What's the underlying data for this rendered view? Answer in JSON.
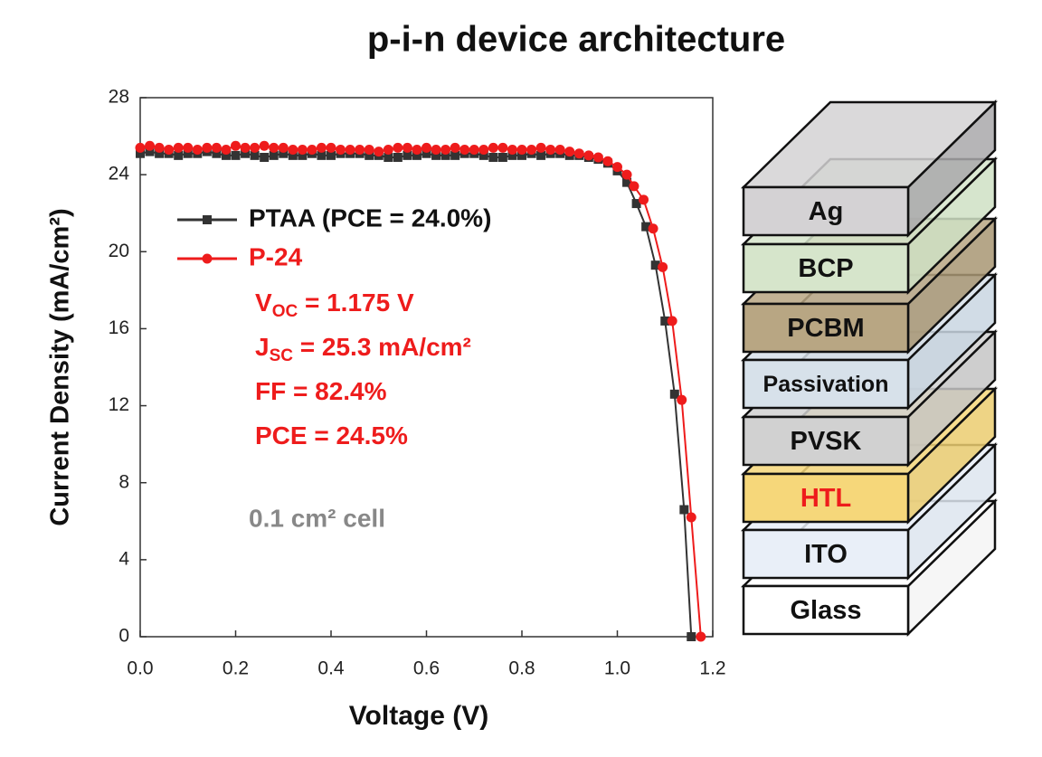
{
  "chart_data": {
    "type": "line",
    "title": "p-i-n device architecture",
    "xlabel": "Voltage (V)",
    "ylabel": "Current Density (mA/cm²)",
    "xlim": [
      0,
      1.2
    ],
    "ylim": [
      0,
      28
    ],
    "xticks": [
      {
        "value": 0,
        "label": "0.0"
      },
      0.2,
      0.4,
      0.6,
      0.8,
      {
        "value": 1,
        "label": "1.0"
      },
      1.2
    ],
    "yticks": [
      0,
      4,
      8,
      12,
      16,
      20,
      24,
      28
    ],
    "series": [
      {
        "name": "PTAA (PCE = 24.0%)",
        "color": "#333333",
        "marker": "square",
        "x": [
          0,
          0.02,
          0.04,
          0.06,
          0.08,
          0.1,
          0.12,
          0.14,
          0.16,
          0.18,
          0.2,
          0.22,
          0.24,
          0.26,
          0.28,
          0.3,
          0.32,
          0.34,
          0.36,
          0.38,
          0.4,
          0.42,
          0.44,
          0.46,
          0.48,
          0.5,
          0.52,
          0.54,
          0.56,
          0.58,
          0.6,
          0.62,
          0.64,
          0.66,
          0.68,
          0.7,
          0.72,
          0.74,
          0.76,
          0.78,
          0.8,
          0.82,
          0.84,
          0.86,
          0.88,
          0.9,
          0.92,
          0.94,
          0.96,
          0.98,
          1.0,
          1.02,
          1.04,
          1.06,
          1.08,
          1.1,
          1.12,
          1.14,
          1.155
        ],
        "values": [
          25.1,
          25.2,
          25.1,
          25.1,
          25.0,
          25.1,
          25.1,
          25.2,
          25.1,
          25.0,
          25.0,
          25.1,
          25.0,
          24.9,
          25.0,
          25.1,
          25.0,
          25.0,
          25.1,
          25.0,
          25.0,
          25.1,
          25.1,
          25.1,
          25.0,
          25.0,
          24.9,
          24.9,
          25.0,
          25.0,
          25.1,
          25.0,
          25.0,
          25.0,
          25.1,
          25.1,
          25.0,
          24.9,
          24.9,
          25.0,
          25.0,
          25.1,
          25.0,
          25.1,
          25.1,
          25.0,
          25.0,
          24.9,
          24.8,
          24.6,
          24.2,
          23.6,
          22.5,
          21.3,
          19.3,
          16.4,
          12.6,
          6.6,
          0
        ]
      },
      {
        "name": "P-24",
        "color": "#ee1c1c",
        "marker": "circle",
        "x": [
          0,
          0.02,
          0.04,
          0.06,
          0.08,
          0.1,
          0.12,
          0.14,
          0.16,
          0.18,
          0.2,
          0.22,
          0.24,
          0.26,
          0.28,
          0.3,
          0.32,
          0.34,
          0.36,
          0.38,
          0.4,
          0.42,
          0.44,
          0.46,
          0.48,
          0.5,
          0.52,
          0.54,
          0.56,
          0.58,
          0.6,
          0.62,
          0.64,
          0.66,
          0.68,
          0.7,
          0.72,
          0.74,
          0.76,
          0.78,
          0.8,
          0.82,
          0.84,
          0.86,
          0.88,
          0.9,
          0.92,
          0.94,
          0.96,
          0.98,
          1.0,
          1.02,
          1.035,
          1.055,
          1.075,
          1.095,
          1.115,
          1.135,
          1.155,
          1.175
        ],
        "values": [
          25.4,
          25.5,
          25.4,
          25.3,
          25.4,
          25.4,
          25.3,
          25.4,
          25.4,
          25.3,
          25.5,
          25.4,
          25.4,
          25.5,
          25.4,
          25.4,
          25.3,
          25.3,
          25.3,
          25.4,
          25.4,
          25.3,
          25.3,
          25.3,
          25.3,
          25.2,
          25.3,
          25.4,
          25.4,
          25.3,
          25.4,
          25.3,
          25.3,
          25.4,
          25.3,
          25.3,
          25.3,
          25.4,
          25.4,
          25.3,
          25.3,
          25.3,
          25.4,
          25.3,
          25.3,
          25.2,
          25.1,
          25.0,
          24.9,
          24.7,
          24.4,
          24.0,
          23.4,
          22.7,
          21.2,
          19.2,
          16.4,
          12.3,
          6.2,
          0
        ]
      }
    ],
    "annotations": [
      {
        "symbol": "V",
        "subscript": "OC",
        "text": " = 1.175 V"
      },
      {
        "symbol": "J",
        "subscript": "SC",
        "text": " = 25.3 mA/cm²"
      },
      {
        "symbol": "FF",
        "text": " = 82.4%"
      },
      {
        "symbol": "PCE",
        "text": " = 24.5%"
      }
    ],
    "note": "0.1 cm² cell"
  },
  "stack": {
    "layers": [
      "Ag",
      "BCP",
      "PCBM",
      "Passivation",
      "PVSK",
      "HTL",
      "ITO",
      "Glass"
    ]
  }
}
